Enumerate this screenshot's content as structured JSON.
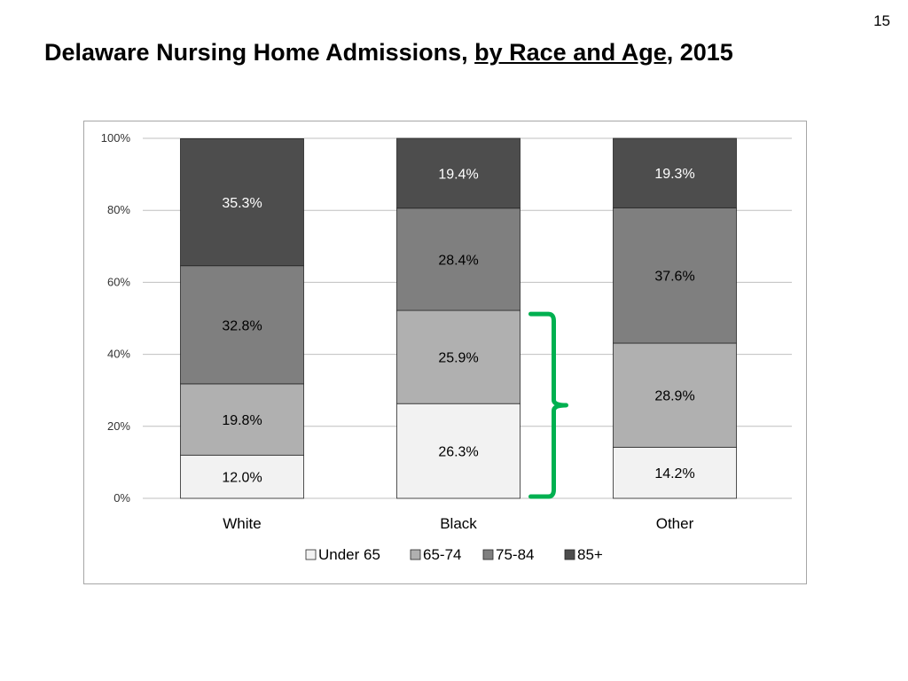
{
  "slide": {
    "number": "15",
    "title_prefix": "Delaware Nursing Home Admissions, ",
    "title_underlined": "by Race and Age",
    "title_suffix": ", 2015"
  },
  "chart_data": {
    "type": "bar",
    "stacked": true,
    "percent": true,
    "categories": [
      "White",
      "Black",
      "Other"
    ],
    "series": [
      {
        "name": "Under 65",
        "color": "#f2f2f2",
        "label_color": "#000000",
        "values": [
          12.0,
          26.3,
          14.2
        ],
        "labels": [
          "12.0%",
          "26.3%",
          "14.2%"
        ]
      },
      {
        "name": "65-74",
        "color": "#b0b0b0",
        "label_color": "#000000",
        "values": [
          19.8,
          25.9,
          28.9
        ],
        "labels": [
          "19.8%",
          "25.9%",
          "28.9%"
        ]
      },
      {
        "name": "75-84",
        "color": "#7f7f7f",
        "label_color": "#000000",
        "values": [
          32.8,
          28.4,
          37.6
        ],
        "labels": [
          "32.8%",
          "28.4%",
          "37.6%"
        ]
      },
      {
        "name": "85+",
        "color": "#4d4d4d",
        "label_color": "#ffffff",
        "values": [
          35.3,
          19.4,
          19.3
        ],
        "labels": [
          "35.3%",
          "19.4%",
          "19.3%"
        ]
      }
    ],
    "y_ticks": [
      "0%",
      "20%",
      "40%",
      "60%",
      "80%",
      "100%"
    ],
    "ylim": [
      0,
      100
    ],
    "grid": true,
    "legend_position": "bottom",
    "annotation": {
      "type": "brace",
      "category": "Black",
      "spans_series": [
        "Under 65",
        "65-74"
      ],
      "color": "#00b050"
    }
  }
}
